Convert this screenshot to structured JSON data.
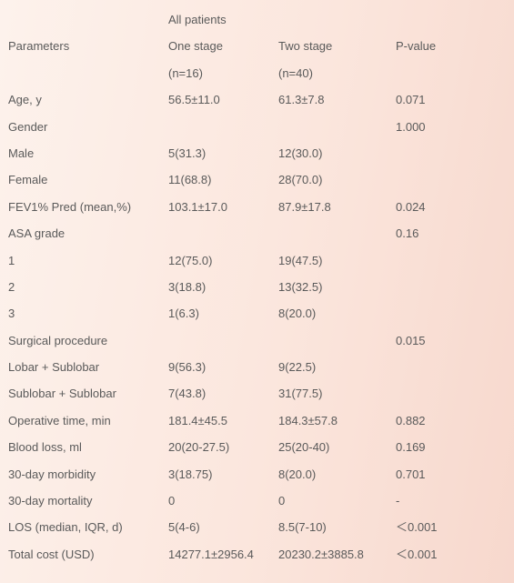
{
  "header": {
    "group_label": "All patients",
    "col_parameters": "Parameters",
    "col_one_stage": "One stage",
    "col_two_stage": "Two stage",
    "col_pvalue": "P-value",
    "n_one_stage": "(n=16)",
    "n_two_stage": "(n=40)"
  },
  "rows": [
    {
      "param": "Age, y",
      "one": "56.5±11.0",
      "two": "61.3±7.8",
      "p": "0.071"
    },
    {
      "param": "Gender",
      "one": "",
      "two": "",
      "p": "1.000"
    },
    {
      "param": "Male",
      "one": "5(31.3)",
      "two": "12(30.0)",
      "p": ""
    },
    {
      "param": "Female",
      "one": "11(68.8)",
      "two": "28(70.0)",
      "p": ""
    },
    {
      "param": "FEV1% Pred (mean,%)",
      "one": "103.1±17.0",
      "two": "87.9±17.8",
      "p": "0.024"
    },
    {
      "param": "ASA grade",
      "one": "",
      "two": "",
      "p": "0.16"
    },
    {
      "param": "1",
      "one": "12(75.0)",
      "two": "19(47.5)",
      "p": ""
    },
    {
      "param": "2",
      "one": "3(18.8)",
      "two": "13(32.5)",
      "p": ""
    },
    {
      "param": "3",
      "one": "1(6.3)",
      "two": "8(20.0)",
      "p": ""
    },
    {
      "param": "Surgical procedure",
      "one": "",
      "two": "",
      "p": "0.015"
    },
    {
      "param": "Lobar + Sublobar",
      "one": "9(56.3)",
      "two": "9(22.5)",
      "p": ""
    },
    {
      "param": "Sublobar + Sublobar",
      "one": "7(43.8)",
      "two": "31(77.5)",
      "p": ""
    },
    {
      "param": "Operative time, min",
      "one": "181.4±45.5",
      "two": "184.3±57.8",
      "p": "0.882"
    },
    {
      "param": "Blood loss, ml",
      "one": "20(20-27.5)",
      "two": "25(20-40)",
      "p": "0.169"
    },
    {
      "param": "30-day morbidity",
      "one": "3(18.75)",
      "two": "8(20.0)",
      "p": "0.701"
    },
    {
      "param": "30-day mortality",
      "one": "0",
      "two": "0",
      "p": "-"
    },
    {
      "param": "LOS (median, IQR, d)",
      "one": "5(4-6)",
      "two": "8.5(7-10)",
      "p": "＜0.001"
    },
    {
      "param": "Total cost (USD)",
      "one": "14277.1±2956.4",
      "two": "20230.2±3885.8",
      "p": "＜0.001"
    }
  ]
}
